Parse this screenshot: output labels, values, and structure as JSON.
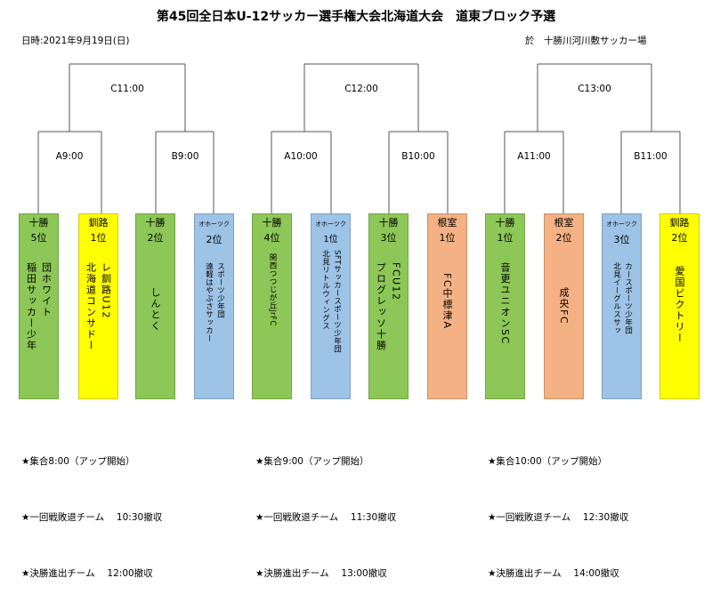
{
  "title": "第45回全日本U-12サッカー選手権大会北海道大会　道東ブロック予選",
  "date": "日時:2021年9月19日(日)",
  "venue": "於　十勝川河川敷サッカー場",
  "times": {
    "c11": "C11:00",
    "c12": "C12:00",
    "c13": "C13:00",
    "a9": "A9:00",
    "b9": "B9:00",
    "a10": "A10:00",
    "b10": "B10:00",
    "a11": "A11:00",
    "b11": "B11:00"
  },
  "teams": [
    {
      "region": "十勝",
      "rank": "5位",
      "name_col1": "稲田サッカー少年",
      "name_col2": "団ホワイト",
      "color": "#8dc757"
    },
    {
      "region": "釧路",
      "rank": "1位",
      "name_col1": "北海道コンサドー",
      "name_col2": "レ釧路U12",
      "color": "#ffff00"
    },
    {
      "region": "十勝",
      "rank": "2位",
      "name_col1": "しんとく",
      "name_col2": "",
      "color": "#8dc757"
    },
    {
      "region": "オホーツク",
      "rank": "2位",
      "name_col1": "遠軽はやぶさサッカー",
      "name_col2": "スポーツ少年団",
      "color": "#9dc3e6"
    },
    {
      "region": "十勝",
      "rank": "4位",
      "name_col1": "関西つつじが丘JrFC",
      "name_col2": "",
      "color": "#8dc757"
    },
    {
      "region": "オホーツク",
      "rank": "1位",
      "name_col1": "北見リトルウィングス",
      "name_col2": "SFTサッカースポーツ少年団",
      "color": "#9dc3e6"
    },
    {
      "region": "十勝",
      "rank": "3位",
      "name_col1": "プログレッソ十勝",
      "name_col2": "FCU12",
      "color": "#8dc757"
    },
    {
      "region": "根室",
      "rank": "1位",
      "name_col1": "FC中標津A",
      "name_col2": "",
      "color": "#f4b183"
    },
    {
      "region": "十勝",
      "rank": "1位",
      "name_col1": "音更ユニオンSC",
      "name_col2": "",
      "color": "#8dc757"
    },
    {
      "region": "根室",
      "rank": "2位",
      "name_col1": "成央FC",
      "name_col2": "",
      "color": "#f4b183"
    },
    {
      "region": "オホーツク",
      "rank": "3位",
      "name_col1": "北見イーグルスサッ",
      "name_col2": "カースポーツ少年団",
      "color": "#9dc3e6"
    },
    {
      "region": "釧路",
      "rank": "2位",
      "name_col1": "愛国ビクトリー",
      "name_col2": "",
      "color": "#ffff00"
    }
  ],
  "notes": [
    {
      "line1": "★集合8:00（アップ開始）",
      "line2": "★一回戦敗退チーム　 10:30撤収",
      "line3": "★決勝進出チーム　 12:00撤収"
    },
    {
      "line1": "★集合9:00（アップ開始）",
      "line2": "★一回戦敗退チーム　 11:30撤収",
      "line3": "★決勝進出チーム　 13:00撤収"
    },
    {
      "line1": "★集合10:00（アップ開始）",
      "line2": "★一回戦敗退チーム　 12:30撤収",
      "line3": "★決勝進出チーム　 14:00撤収"
    }
  ]
}
